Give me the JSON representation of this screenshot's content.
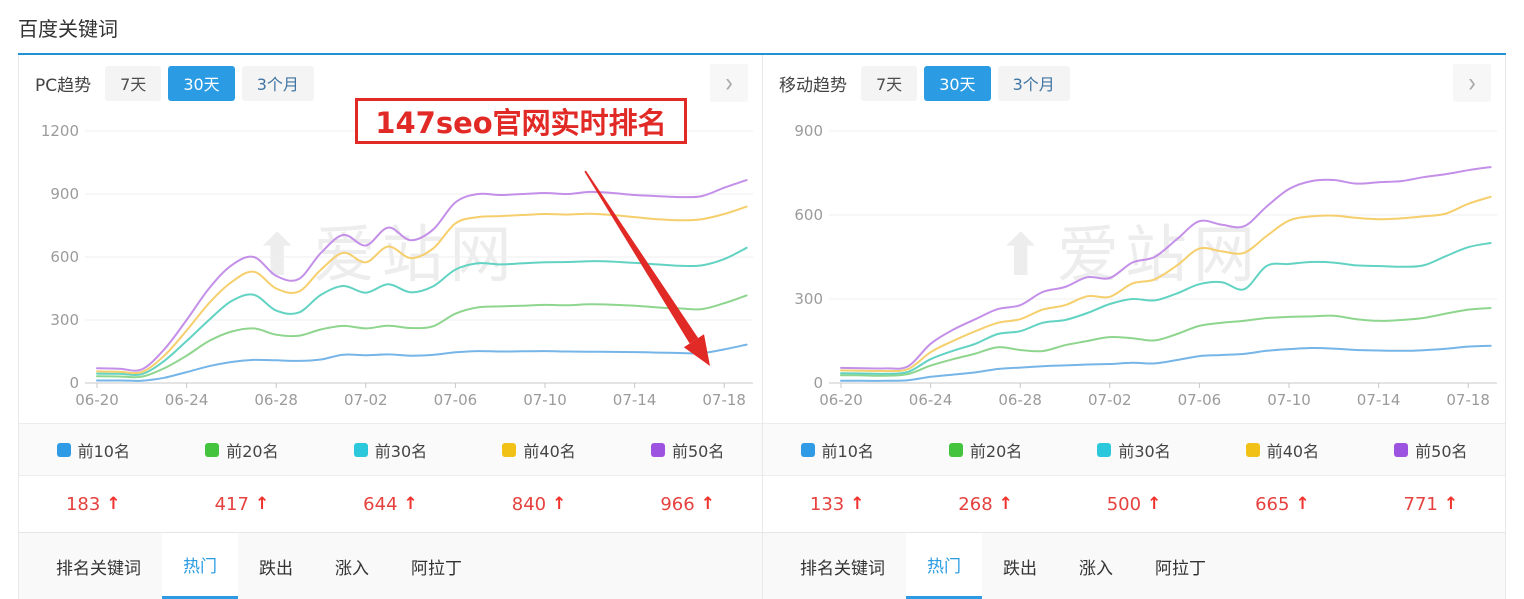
{
  "page": {
    "title": "百度关键词"
  },
  "theme": {
    "accent": "#2b9ce4",
    "title_underline": "#2392d0",
    "value_red": "#e5413e",
    "annotation_red": "#e12a26",
    "watermark_gray": "#ededed"
  },
  "watermark": {
    "text": "爱站网"
  },
  "panels": [
    {
      "title": "PC趋势",
      "range_tabs": [
        {
          "label": "7天",
          "active": false
        },
        {
          "label": "30天",
          "active": true
        },
        {
          "label": "3个月",
          "active": false
        }
      ],
      "annotation": {
        "text": "147seo官网实时排名"
      },
      "legend": [
        {
          "label": "前10名",
          "color": "#2e9be4"
        },
        {
          "label": "前20名",
          "color": "#44c33e"
        },
        {
          "label": "前30名",
          "color": "#2bc8dc"
        },
        {
          "label": "前40名",
          "color": "#f2c116"
        },
        {
          "label": "前50名",
          "color": "#9c53e0"
        }
      ],
      "values": [
        {
          "value": "183",
          "arrow": "↑",
          "trend": "up"
        },
        {
          "value": "417",
          "arrow": "↑",
          "trend": "up"
        },
        {
          "value": "644",
          "arrow": "↑",
          "trend": "up"
        },
        {
          "value": "840",
          "arrow": "↑",
          "trend": "up"
        },
        {
          "value": "966",
          "arrow": "↑",
          "trend": "up"
        }
      ],
      "bottom_tabs": [
        {
          "label": "排名关键词",
          "active": false
        },
        {
          "label": "热门",
          "active": true
        },
        {
          "label": "跌出",
          "active": false
        },
        {
          "label": "涨入",
          "active": false
        },
        {
          "label": "阿拉丁",
          "active": false
        }
      ]
    },
    {
      "title": "移动趋势",
      "range_tabs": [
        {
          "label": "7天",
          "active": false
        },
        {
          "label": "30天",
          "active": true
        },
        {
          "label": "3个月",
          "active": false
        }
      ],
      "legend": [
        {
          "label": "前10名",
          "color": "#2e9be4"
        },
        {
          "label": "前20名",
          "color": "#44c33e"
        },
        {
          "label": "前30名",
          "color": "#2bc8dc"
        },
        {
          "label": "前40名",
          "color": "#f2c116"
        },
        {
          "label": "前50名",
          "color": "#9c53e0"
        }
      ],
      "values": [
        {
          "value": "133",
          "arrow": "↑",
          "trend": "up"
        },
        {
          "value": "268",
          "arrow": "↑",
          "trend": "up"
        },
        {
          "value": "500",
          "arrow": "↑",
          "trend": "up"
        },
        {
          "value": "665",
          "arrow": "↑",
          "trend": "up"
        },
        {
          "value": "771",
          "arrow": "↑",
          "trend": "up"
        }
      ],
      "bottom_tabs": [
        {
          "label": "排名关键词",
          "active": false
        },
        {
          "label": "热门",
          "active": true
        },
        {
          "label": "跌出",
          "active": false
        },
        {
          "label": "涨入",
          "active": false
        },
        {
          "label": "阿拉丁",
          "active": false
        }
      ]
    }
  ],
  "chart_data": [
    {
      "type": "line",
      "title": "PC趋势 30天",
      "x": [
        "06-20",
        "06-21",
        "06-22",
        "06-23",
        "06-24",
        "06-25",
        "06-26",
        "06-27",
        "06-28",
        "06-29",
        "06-30",
        "07-01",
        "07-02",
        "07-03",
        "07-04",
        "07-05",
        "07-06",
        "07-07",
        "07-08",
        "07-09",
        "07-10",
        "07-11",
        "07-12",
        "07-13",
        "07-14",
        "07-15",
        "07-16",
        "07-17",
        "07-18",
        "07-19"
      ],
      "x_ticks": [
        "06-20",
        "06-24",
        "06-28",
        "07-02",
        "07-06",
        "07-10",
        "07-14",
        "07-18"
      ],
      "tick_indices": [
        0,
        4,
        8,
        12,
        16,
        20,
        24,
        28
      ],
      "ylim": [
        0,
        1200
      ],
      "yticks": [
        0,
        300,
        600,
        900,
        1200
      ],
      "grid": true,
      "legend_position": "bottom",
      "series": [
        {
          "name": "前10名",
          "color": "#76b5e8",
          "values": [
            12,
            12,
            11,
            25,
            52,
            80,
            100,
            110,
            108,
            105,
            112,
            135,
            132,
            136,
            130,
            134,
            146,
            152,
            150,
            151,
            152,
            150,
            149,
            148,
            147,
            145,
            143,
            142,
            160,
            183
          ]
        },
        {
          "name": "前20名",
          "color": "#8ed58e",
          "values": [
            32,
            31,
            30,
            70,
            130,
            200,
            245,
            260,
            230,
            225,
            255,
            272,
            260,
            273,
            262,
            270,
            330,
            360,
            365,
            368,
            372,
            370,
            375,
            373,
            368,
            360,
            355,
            352,
            380,
            417
          ]
        },
        {
          "name": "前30名",
          "color": "#62d3c2",
          "values": [
            45,
            44,
            42,
            105,
            200,
            300,
            390,
            420,
            345,
            335,
            420,
            462,
            430,
            470,
            432,
            460,
            540,
            570,
            565,
            570,
            575,
            576,
            580,
            578,
            572,
            565,
            558,
            560,
            590,
            644
          ]
        },
        {
          "name": "前40名",
          "color": "#f6cf6d",
          "values": [
            55,
            54,
            52,
            130,
            250,
            380,
            480,
            530,
            450,
            435,
            540,
            620,
            575,
            650,
            595,
            640,
            760,
            790,
            795,
            800,
            805,
            802,
            806,
            800,
            790,
            780,
            775,
            780,
            805,
            840
          ]
        },
        {
          "name": "前50名",
          "color": "#c48fe8",
          "values": [
            70,
            68,
            65,
            160,
            300,
            450,
            560,
            600,
            510,
            495,
            620,
            705,
            655,
            740,
            680,
            730,
            860,
            900,
            895,
            900,
            905,
            900,
            910,
            905,
            895,
            890,
            885,
            890,
            930,
            966
          ]
        }
      ]
    },
    {
      "type": "line",
      "title": "移动趋势 30天",
      "x": [
        "06-20",
        "06-21",
        "06-22",
        "06-23",
        "06-24",
        "06-25",
        "06-26",
        "06-27",
        "06-28",
        "06-29",
        "06-30",
        "07-01",
        "07-02",
        "07-03",
        "07-04",
        "07-05",
        "07-06",
        "07-07",
        "07-08",
        "07-09",
        "07-10",
        "07-11",
        "07-12",
        "07-13",
        "07-14",
        "07-15",
        "07-16",
        "07-17",
        "07-18",
        "07-19"
      ],
      "x_ticks": [
        "06-20",
        "06-24",
        "06-28",
        "07-02",
        "07-06",
        "07-10",
        "07-14",
        "07-18"
      ],
      "tick_indices": [
        0,
        4,
        8,
        12,
        16,
        20,
        24,
        28
      ],
      "ylim": [
        0,
        900
      ],
      "yticks": [
        0,
        300,
        600,
        900
      ],
      "grid": true,
      "legend_position": "bottom",
      "series": [
        {
          "name": "前10名",
          "color": "#76b5e8",
          "values": [
            8,
            8,
            8,
            10,
            22,
            30,
            38,
            50,
            55,
            60,
            63,
            66,
            68,
            72,
            70,
            82,
            96,
            100,
            104,
            115,
            121,
            125,
            123,
            118,
            116,
            115,
            117,
            122,
            130,
            133
          ]
        },
        {
          "name": "前20名",
          "color": "#8ed58e",
          "values": [
            28,
            27,
            26,
            32,
            62,
            85,
            105,
            128,
            118,
            114,
            135,
            150,
            164,
            160,
            152,
            175,
            204,
            215,
            222,
            232,
            236,
            238,
            240,
            228,
            222,
            225,
            232,
            248,
            262,
            268
          ]
        },
        {
          "name": "前30名",
          "color": "#62d3c2",
          "values": [
            35,
            34,
            33,
            40,
            85,
            115,
            140,
            175,
            185,
            215,
            225,
            250,
            282,
            300,
            295,
            320,
            353,
            360,
            335,
            418,
            425,
            432,
            430,
            420,
            418,
            415,
            420,
            453,
            485,
            500
          ]
        },
        {
          "name": "前40名",
          "color": "#f6cf6d",
          "values": [
            45,
            44,
            43,
            50,
            110,
            150,
            185,
            215,
            228,
            262,
            278,
            310,
            308,
            355,
            370,
            420,
            480,
            470,
            465,
            525,
            580,
            595,
            598,
            590,
            585,
            588,
            595,
            605,
            640,
            665
          ]
        },
        {
          "name": "前50名",
          "color": "#c48fe8",
          "values": [
            54,
            53,
            52,
            60,
            140,
            190,
            228,
            264,
            278,
            325,
            343,
            378,
            375,
            430,
            450,
            514,
            578,
            565,
            560,
            630,
            693,
            721,
            725,
            712,
            717,
            721,
            735,
            746,
            760,
            771
          ]
        }
      ]
    }
  ]
}
